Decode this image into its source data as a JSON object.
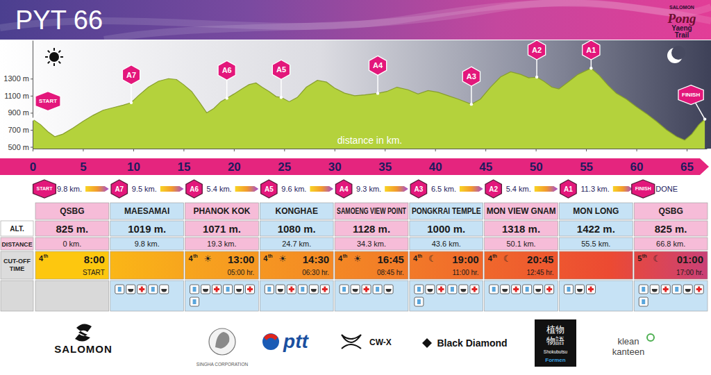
{
  "header": {
    "title": "PYT 66",
    "logo_brand": "SALOMON",
    "logo_lines": [
      "Pong",
      "Yaeng",
      "Trail"
    ]
  },
  "chart_data": {
    "type": "area",
    "xlabel": "distance in km.",
    "color": "#b4d23c",
    "x": [
      0,
      0.8,
      1.5,
      2.2,
      3,
      4,
      5,
      6,
      7,
      8,
      9,
      9.8,
      10.5,
      11.5,
      12.5,
      13.5,
      14.3,
      15,
      15.8,
      16.6,
      17.3,
      18,
      18.7,
      19.3,
      20,
      20.8,
      21.5,
      22.2,
      22.8,
      23.5,
      24.2,
      24.7,
      25.5,
      26.3,
      27.2,
      28.3,
      29.2,
      30,
      31,
      32,
      33,
      34.3,
      35.2,
      36.2,
      37.3,
      38.3,
      39.3,
      40.3,
      41.3,
      42.3,
      43.6,
      44.5,
      45.5,
      46.5,
      47.5,
      48.5,
      49.3,
      50.1,
      50.8,
      51.6,
      52.3,
      53.2,
      54.2,
      55.5,
      56.3,
      57.2,
      58,
      59,
      60,
      61,
      62,
      63,
      64,
      64.8,
      65.5,
      66.2,
      66.8
    ],
    "values": [
      825,
      760,
      680,
      620,
      650,
      720,
      800,
      870,
      930,
      960,
      990,
      1019,
      1100,
      1200,
      1270,
      1300,
      1290,
      1230,
      1150,
      1020,
      900,
      950,
      1030,
      1071,
      1120,
      1180,
      1230,
      1250,
      1200,
      1150,
      1090,
      1080,
      1030,
      1080,
      1200,
      1280,
      1260,
      1190,
      1130,
      1100,
      1110,
      1128,
      1150,
      1200,
      1170,
      1120,
      1160,
      1140,
      1100,
      1060,
      1000,
      1060,
      1200,
      1320,
      1380,
      1350,
      1310,
      1318,
      1270,
      1200,
      1180,
      1260,
      1350,
      1422,
      1340,
      1220,
      1130,
      1060,
      970,
      890,
      800,
      700,
      620,
      580,
      650,
      760,
      825
    ],
    "xlim": [
      0,
      67
    ],
    "xticks": [
      0,
      5,
      10,
      15,
      20,
      25,
      30,
      35,
      40,
      45,
      50,
      55,
      60,
      65
    ],
    "ylim": [
      480,
      1750
    ],
    "yticks": [
      {
        "value": 500,
        "label": "500 m"
      },
      {
        "value": 700,
        "label": "700 m"
      },
      {
        "value": 900,
        "label": "900 m"
      },
      {
        "value": 1100,
        "label": "1100 m"
      },
      {
        "value": 1300,
        "label": "1300 m"
      }
    ]
  },
  "row_labels": {
    "alt": "ALT.",
    "distance": "DISTANCE",
    "cutoff": "CUT-OFF TIME"
  },
  "checkpoints": [
    {
      "code": "START",
      "segment": "9.8 km.",
      "name": "QSBG",
      "alt": 825,
      "alt_label": "825 m.",
      "distance_km": 0,
      "distance_label": "0 km.",
      "cutoff": {
        "day": "4",
        "day_suffix": "th",
        "time": "8:00",
        "elapsed": "START"
      }
    },
    {
      "code": "A7",
      "segment": "9.5 km.",
      "name": "MAESAMAI",
      "alt": 1019,
      "alt_label": "1019 m.",
      "distance_km": 9.8,
      "distance_label": "9.8 km.",
      "cutoff": null
    },
    {
      "code": "A6",
      "segment": "5.4 km.",
      "name": "PHANOK KOK",
      "alt": 1071,
      "alt_label": "1071 m.",
      "distance_km": 19.3,
      "distance_label": "19.3 km.",
      "cutoff": {
        "day": "4",
        "day_suffix": "th",
        "symbol": "☀",
        "time": "13:00",
        "elapsed": "05:00 hr."
      }
    },
    {
      "code": "A5",
      "segment": "9.6 km.",
      "name": "KONGHAE",
      "alt": 1080,
      "alt_label": "1080 m.",
      "distance_km": 24.7,
      "distance_label": "24.7 km.",
      "cutoff": {
        "day": "4",
        "day_suffix": "th",
        "symbol": "☀",
        "time": "14:30",
        "elapsed": "06:30 hr."
      }
    },
    {
      "code": "A4",
      "segment": "9.3 km.",
      "name": "SAMOENG VIEW POINT",
      "alt": 1128,
      "alt_label": "1128 m.",
      "distance_km": 34.3,
      "distance_label": "34.3 km.",
      "cutoff": {
        "day": "4",
        "day_suffix": "th",
        "symbol": "☀",
        "time": "16:45",
        "elapsed": "08:45 hr."
      }
    },
    {
      "code": "A3",
      "segment": "6.5 km.",
      "name": "PONGKRAI TEMPLE",
      "alt": 1000,
      "alt_label": "1000 m.",
      "distance_km": 43.6,
      "distance_label": "43.6 km.",
      "cutoff": {
        "day": "4",
        "day_suffix": "th",
        "symbol": "☾",
        "time": "19:00",
        "elapsed": "11:00 hr."
      }
    },
    {
      "code": "A2",
      "segment": "5.4 km.",
      "name": "MON VIEW GNAM",
      "alt": 1318,
      "alt_label": "1318 m.",
      "distance_km": 50.1,
      "distance_label": "50.1 km.",
      "cutoff": {
        "day": "4",
        "day_suffix": "th",
        "symbol": "☾",
        "time": "20:45",
        "elapsed": "12:45 hr."
      }
    },
    {
      "code": "A1",
      "segment": "11.3 km.",
      "name": "MON LONG",
      "alt": 1422,
      "alt_label": "1422 m.",
      "distance_km": 55.5,
      "distance_label": "55.5 km.",
      "cutoff": null
    },
    {
      "code": "FINISH",
      "segment": "DONE",
      "name": "QSBG",
      "alt": 825,
      "alt_label": "825 m.",
      "distance_km": 66.8,
      "distance_label": "66.8 km.",
      "cutoff": {
        "day": "5",
        "day_suffix": "th",
        "symbol": "☾",
        "time": "01:00",
        "elapsed": "17:00 hr."
      }
    }
  ],
  "sponsors": [
    [
      "SALOMON"
    ],
    [
      "SINGHA CORPORATION"
    ],
    [
      "ptt"
    ],
    [
      "CW-X"
    ],
    [
      "Black Diamond"
    ],
    [
      "植物",
      "物語",
      "Shokubutsu",
      "Formen"
    ],
    [
      "klean",
      "kanteen"
    ]
  ]
}
